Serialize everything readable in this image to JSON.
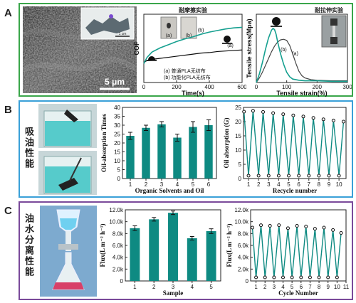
{
  "panels": {
    "A": {
      "letter": "A",
      "border_color": "#3aa64a",
      "sem": {
        "scale_bar": "5 μm",
        "inset_scale": "1 cm"
      },
      "cof": {
        "title": "耐摩擦实验",
        "xlabel": "Time(s)",
        "ylabel": "COF",
        "photo_labels": [
          "(a)",
          "(b)"
        ],
        "legend": [
          "(a) 普通PLA无纺布",
          "(b) 功能化PLA无纺布"
        ]
      },
      "tensile": {
        "title": "耐拉伸实验",
        "xlabel": "Tensile strain(%)",
        "ylabel": "Tensile stress(Mpa)"
      }
    },
    "B": {
      "letter": "B",
      "border_color": "#3aa0d8",
      "side_label": "吸油性能"
    },
    "C": {
      "letter": "C",
      "border_color": "#7a4a9a",
      "side_label": "油水分离性能"
    }
  },
  "chart_data": [
    {
      "id": "A-cof",
      "type": "line",
      "title": "",
      "xlabel": "Time(s)",
      "ylabel": "COF",
      "xlim": [
        0,
        600
      ],
      "ylim": [
        0,
        1.3
      ],
      "xticks": [
        0,
        200,
        400,
        600
      ],
      "yticks": [],
      "series": [
        {
          "name": "(a)",
          "color": "#0b0b0b",
          "x": [
            0,
            20,
            50,
            100,
            150,
            200,
            250,
            300,
            350,
            400,
            450,
            500,
            550,
            600
          ],
          "y": [
            0.38,
            0.42,
            0.44,
            0.46,
            0.48,
            0.5,
            0.52,
            0.54,
            0.56,
            0.57,
            0.59,
            0.6,
            0.61,
            0.62
          ]
        },
        {
          "name": "(b)",
          "color": "#16a090",
          "x": [
            0,
            20,
            50,
            100,
            150,
            200,
            250,
            300,
            350,
            400,
            450,
            500,
            550,
            600
          ],
          "y": [
            0.36,
            0.48,
            0.58,
            0.66,
            0.72,
            0.78,
            0.83,
            0.87,
            0.92,
            0.96,
            0.99,
            1.02,
            1.04,
            1.05
          ]
        }
      ],
      "annotations": [
        "(a)",
        "(b)"
      ]
    },
    {
      "id": "A-tensile",
      "type": "line",
      "title": "",
      "xlabel": "Tensile strain(%)",
      "ylabel": "Tensile stress(Mpa)",
      "xlim": [
        0,
        300
      ],
      "ylim": [
        0,
        1.2
      ],
      "xticks": [
        0,
        100,
        200,
        300
      ],
      "yticks": [],
      "series": [
        {
          "name": "(a)",
          "color": "#444444",
          "x": [
            0,
            10,
            20,
            30,
            40,
            50,
            60,
            70,
            80,
            90,
            100,
            110,
            120,
            130,
            140,
            150,
            160,
            180,
            200,
            250,
            300
          ],
          "y": [
            0.0,
            0.08,
            0.18,
            0.3,
            0.42,
            0.54,
            0.64,
            0.71,
            0.75,
            0.76,
            0.74,
            0.65,
            0.5,
            0.34,
            0.2,
            0.12,
            0.08,
            0.05,
            0.04,
            0.03,
            0.03
          ]
        },
        {
          "name": "(b)",
          "color": "#16a090",
          "x": [
            0,
            10,
            20,
            30,
            40,
            50,
            55,
            60,
            65,
            70,
            80,
            90,
            100,
            110,
            120,
            140,
            160,
            200,
            250,
            300
          ],
          "y": [
            0.0,
            0.15,
            0.35,
            0.58,
            0.78,
            0.92,
            0.95,
            0.93,
            0.85,
            0.72,
            0.5,
            0.32,
            0.18,
            0.1,
            0.06,
            0.04,
            0.03,
            0.03,
            0.02,
            0.02
          ]
        }
      ],
      "annotations": [
        "(a)",
        "(b)"
      ]
    },
    {
      "id": "B-bar",
      "type": "bar",
      "title": "",
      "xlabel": "Organic Solvents and Oil",
      "ylabel": "Oil-absorption Times",
      "categories": [
        "1",
        "2",
        "3",
        "4",
        "5",
        "6"
      ],
      "values": [
        24,
        28.5,
        30.5,
        23,
        29,
        30
      ],
      "errors": [
        2,
        1.5,
        1.5,
        2,
        3,
        3
      ],
      "ylim": [
        0,
        40
      ],
      "yticks": [
        0,
        5,
        10,
        15,
        20,
        25,
        30,
        35,
        40
      ],
      "color": "#0e8a82"
    },
    {
      "id": "B-cycle",
      "type": "line",
      "title": "",
      "xlabel": "Recycle number",
      "ylabel": "Oil absorption (G)",
      "xlim": [
        0.5,
        10.7
      ],
      "ylim": [
        0,
        25
      ],
      "xticks": [
        1,
        2,
        3,
        4,
        5,
        6,
        7,
        8,
        9,
        10
      ],
      "yticks": [
        0,
        5,
        10,
        15,
        20,
        25
      ],
      "x": [
        0.55,
        1,
        1.45,
        2,
        2.45,
        3,
        3.45,
        4,
        4.45,
        5,
        5.45,
        6,
        6.45,
        7,
        7.45,
        8,
        8.45,
        9,
        9.45,
        10,
        10.45
      ],
      "y": [
        23.5,
        1,
        23.8,
        1,
        23.4,
        1,
        23.0,
        1,
        22.6,
        1,
        22.2,
        1,
        21.8,
        1,
        21.3,
        1,
        20.8,
        1,
        20.4,
        1,
        20.0
      ],
      "color": "#0e8a82"
    },
    {
      "id": "C-bar",
      "type": "bar",
      "title": "",
      "xlabel": "Sample",
      "ylabel": "Flux(L m⁻² h⁻¹)",
      "categories": [
        "1",
        "2",
        "3",
        "4",
        "5"
      ],
      "values": [
        8900,
        10400,
        11500,
        7200,
        8400
      ],
      "errors": [
        400,
        300,
        300,
        300,
        400
      ],
      "ylim": [
        0,
        12000
      ],
      "yticks": [
        0,
        2000,
        4000,
        6000,
        8000,
        10000,
        12000
      ],
      "ytick_labels": [
        "0",
        "2.0k",
        "4.0k",
        "6.0k",
        "8.0k",
        "10.0k",
        "12.0k"
      ],
      "color": "#0e8a82"
    },
    {
      "id": "C-cycle",
      "type": "line",
      "title": "",
      "xlabel": "Cycle Number",
      "ylabel": "Flux(L m⁻² h⁻¹)",
      "xlim": [
        0.4,
        11
      ],
      "ylim": [
        0,
        12000
      ],
      "xticks": [
        1,
        2,
        3,
        4,
        5,
        6,
        7,
        8,
        9,
        10,
        11
      ],
      "yticks": [
        0,
        2000,
        4000,
        6000,
        8000,
        10000,
        12000
      ],
      "ytick_labels": [
        "0",
        "2.0k",
        "4.0k",
        "6.0k",
        "8.0k",
        "10.0k",
        "12.0k"
      ],
      "x": [
        0.6,
        1,
        1.55,
        2,
        2.55,
        3,
        3.55,
        4,
        4.55,
        5,
        5.55,
        6,
        6.55,
        7,
        7.55,
        8,
        8.55,
        9,
        9.55,
        10,
        10.45
      ],
      "y": [
        9000,
        600,
        9400,
        600,
        9300,
        600,
        9400,
        600,
        8900,
        600,
        9300,
        600,
        9200,
        600,
        8800,
        600,
        9000,
        600,
        8600,
        600,
        8100
      ],
      "color": "#0e8a82"
    }
  ]
}
